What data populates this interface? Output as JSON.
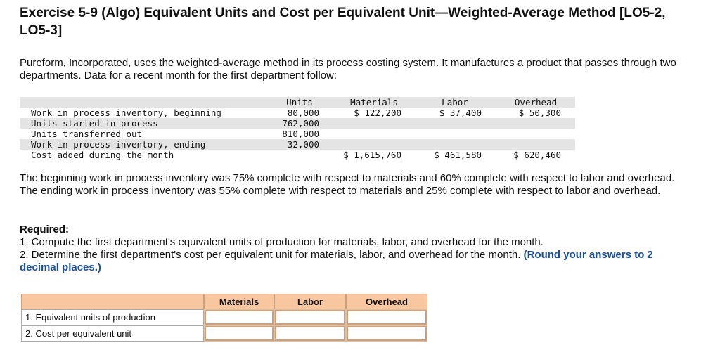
{
  "header": {
    "title": "Exercise 5-9 (Algo) Equivalent Units and Cost per Equivalent Unit—Weighted-Average Method [LO5-2, LO5-3]"
  },
  "intro": "Pureform, Incorporated, uses the weighted-average method in its process costing system. It manufactures a product that passes through two departments. Data for a recent month for the first department follow:",
  "data_table": {
    "columns": {
      "units": "Units",
      "materials": "Materials",
      "labor": "Labor",
      "overhead": "Overhead"
    },
    "rows": [
      {
        "label": "Work in process inventory, beginning",
        "units": "80,000",
        "materials": "$ 122,200",
        "labor": "$ 37,400",
        "overhead": "$ 50,300"
      },
      {
        "label": "Units started in process",
        "units": "762,000"
      },
      {
        "label": "Units transferred out",
        "units": "810,000"
      },
      {
        "label": "Work in process inventory, ending",
        "units": "32,000"
      },
      {
        "label": "Cost added during the month",
        "materials": "$ 1,615,760",
        "labor": "$ 461,580",
        "overhead": "$ 620,460"
      }
    ]
  },
  "paragraph": "The beginning work in process inventory was 75% complete with respect to materials and 60% complete with respect to labor and overhead. The ending work in process inventory was 55% complete with respect to materials and 25% complete with respect to labor and overhead.",
  "required": {
    "label": "Required:",
    "items": [
      "1. Compute the first department's equivalent units of production for materials, labor, and overhead for the month.",
      "2. Determine the first department's cost per equivalent unit for materials, labor, and overhead for the month."
    ],
    "note": "(Round your answers to 2 decimal places.)"
  },
  "answer_table": {
    "columns": [
      "Materials",
      "Labor",
      "Overhead"
    ],
    "rows": [
      "1. Equivalent units of production",
      "2. Cost per equivalent unit"
    ]
  }
}
